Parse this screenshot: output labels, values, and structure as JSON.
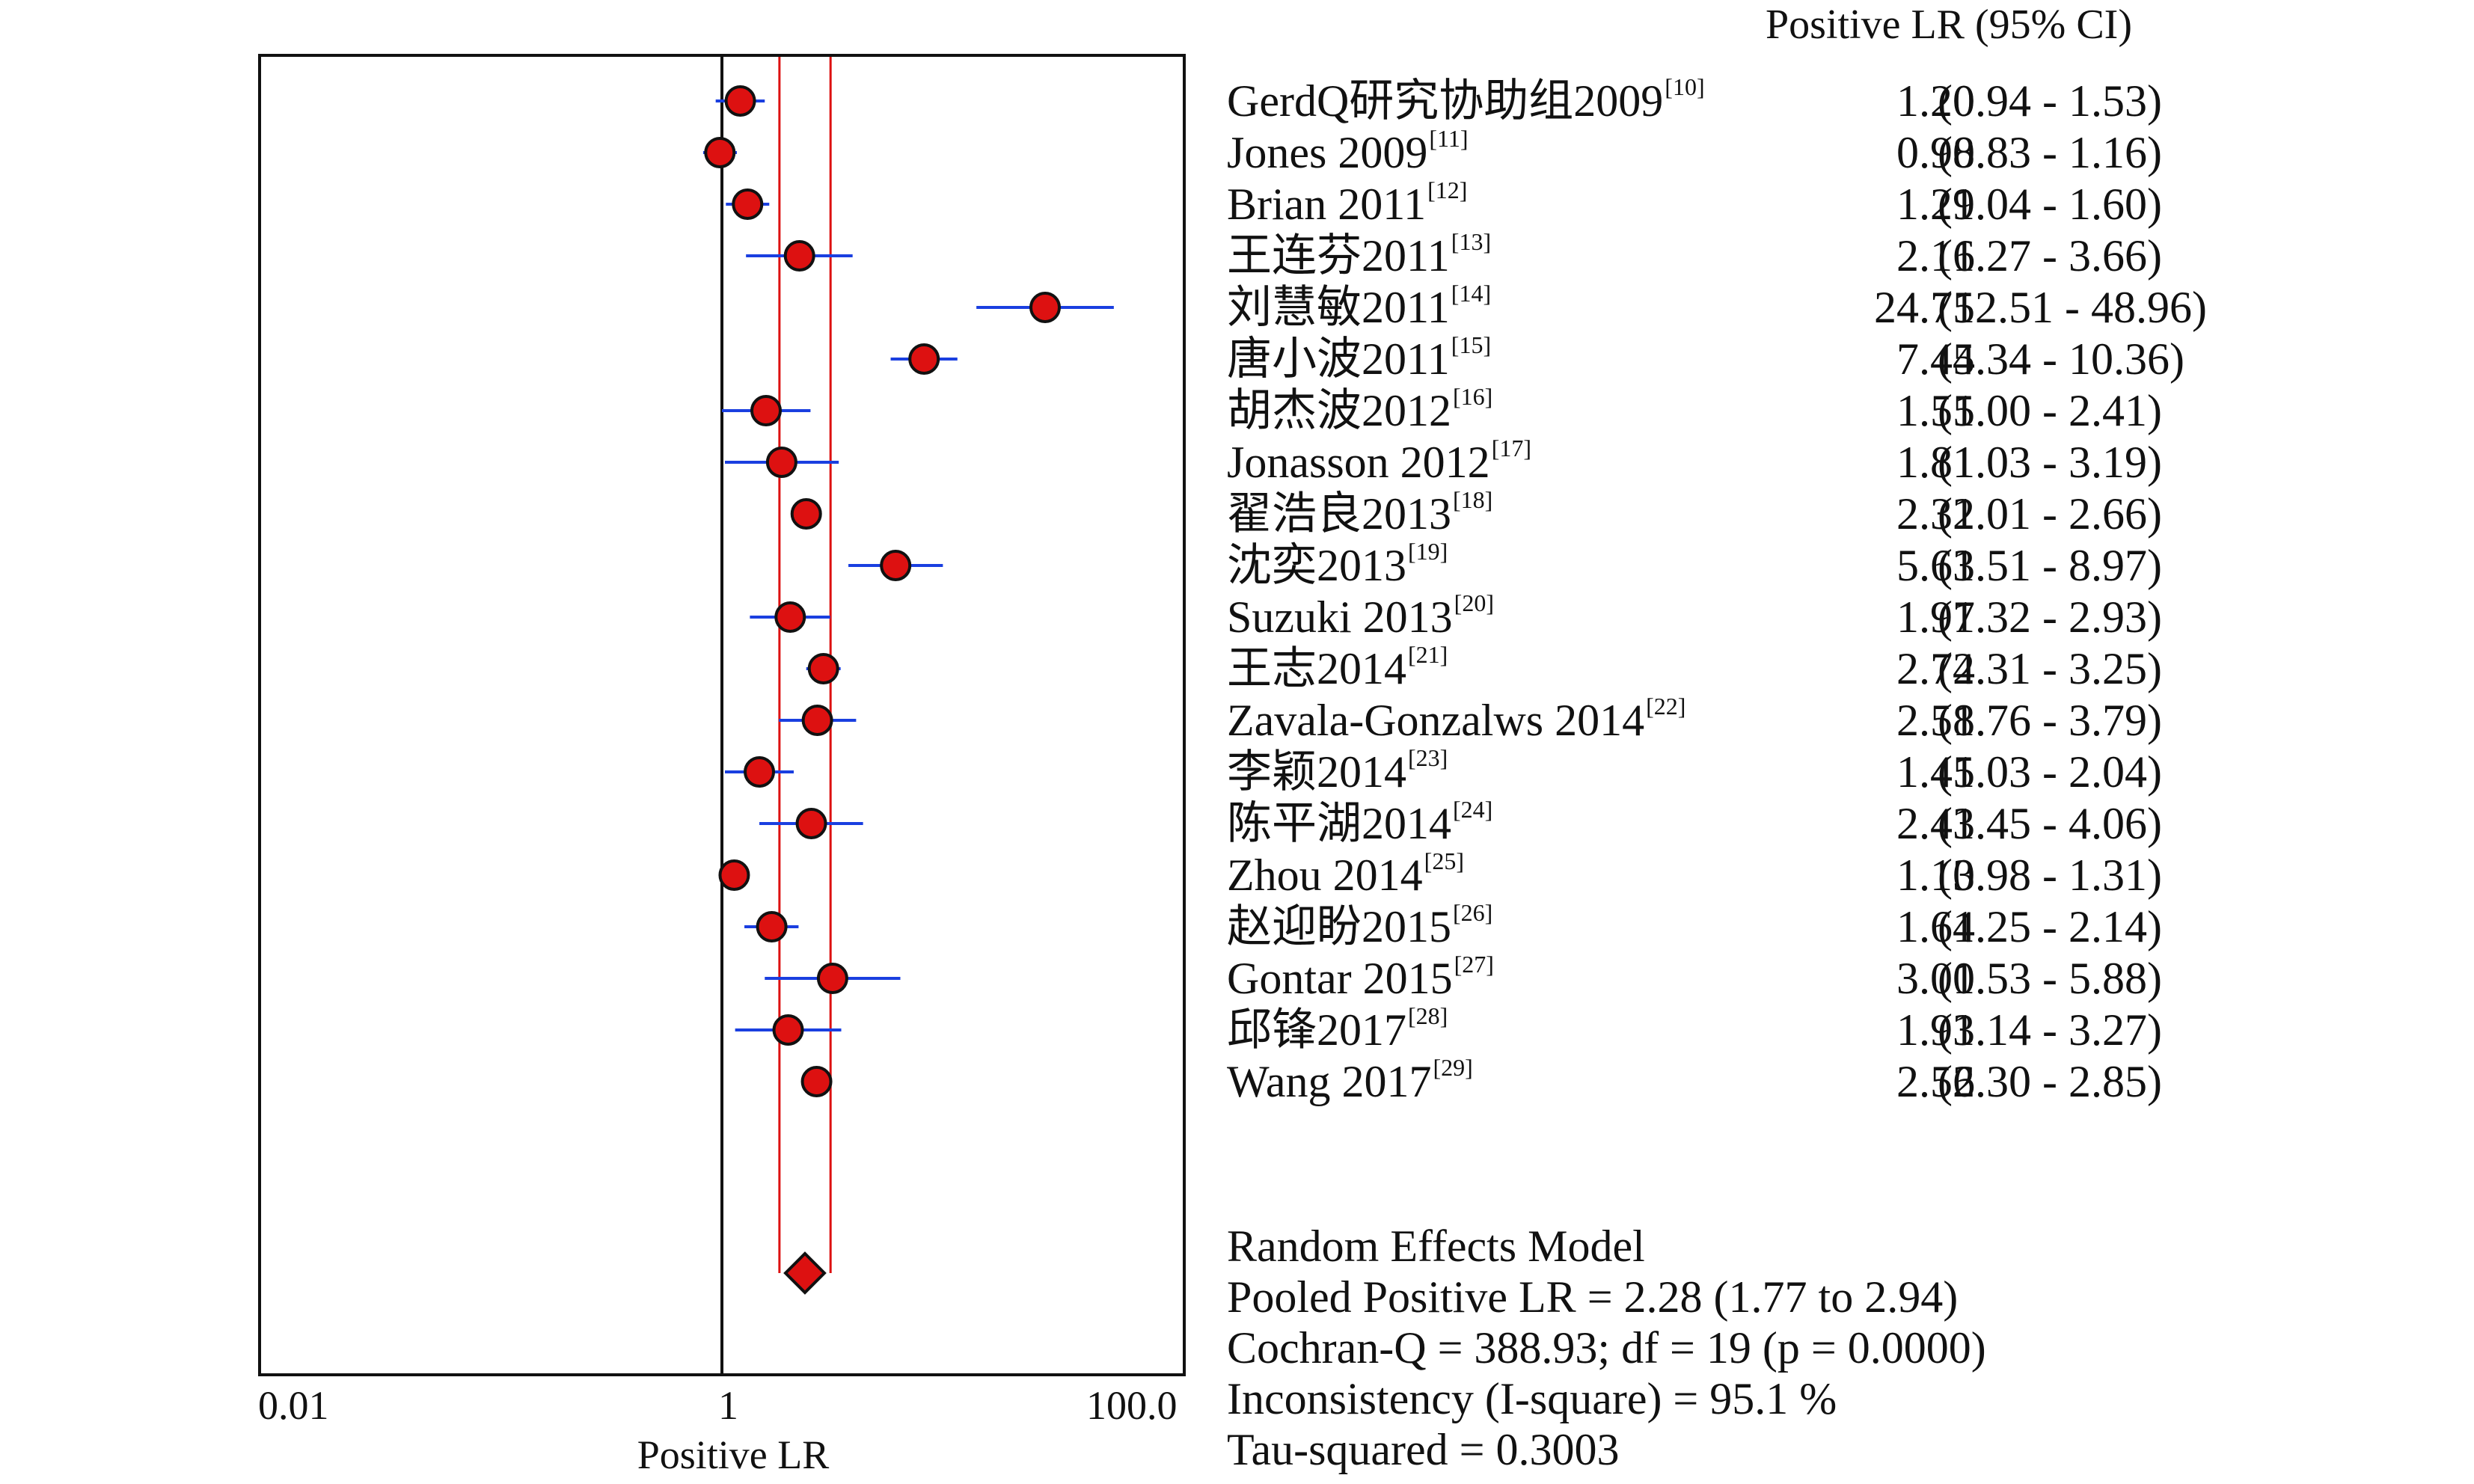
{
  "chart_data": {
    "type": "forest",
    "xlabel": "Positive LR",
    "x_scale": "log",
    "xlim": [
      0.01,
      100.0
    ],
    "x_ticks": [
      "0.01",
      "1",
      "100.0"
    ],
    "column_header": "Positive LR (95% CI)",
    "studies": [
      {
        "name": "GerdQ研究协助组2009",
        "ref": "[10]",
        "estimate": 1.2,
        "ci_low": 0.94,
        "ci_high": 1.53,
        "est_text": "1.20",
        "ci_text": "(0.94 - 1.53)"
      },
      {
        "name": "Jones 2009",
        "ref": "[11]",
        "estimate": 0.98,
        "ci_low": 0.83,
        "ci_high": 1.16,
        "est_text": "0.98",
        "ci_text": "(0.83 - 1.16)"
      },
      {
        "name": "Brian 2011",
        "ref": "[12]",
        "estimate": 1.29,
        "ci_low": 1.04,
        "ci_high": 1.6,
        "est_text": "1.29",
        "ci_text": "(1.04 - 1.60)"
      },
      {
        "name": "王连芬2011",
        "ref": "[13]",
        "estimate": 2.16,
        "ci_low": 1.27,
        "ci_high": 3.66,
        "est_text": "2.16",
        "ci_text": "(1.27 - 3.66)"
      },
      {
        "name": "刘慧敏2011",
        "ref": "[14]",
        "estimate": 24.75,
        "ci_low": 12.51,
        "ci_high": 48.96,
        "est_text": "24.75",
        "ci_text": "(12.51 - 48.96)"
      },
      {
        "name": "唐小波2011",
        "ref": "[15]",
        "estimate": 7.44,
        "ci_low": 5.34,
        "ci_high": 10.36,
        "est_text": "7.44",
        "ci_text": "(5.34 - 10.36)"
      },
      {
        "name": "胡杰波2012",
        "ref": "[16]",
        "estimate": 1.55,
        "ci_low": 1.0,
        "ci_high": 2.41,
        "est_text": "1.55",
        "ci_text": "(1.00 - 2.41)"
      },
      {
        "name": "Jonasson 2012",
        "ref": "[17]",
        "estimate": 1.81,
        "ci_low": 1.03,
        "ci_high": 3.19,
        "est_text": "1.81",
        "ci_text": "(1.03 - 3.19)"
      },
      {
        "name": "翟浩良2013",
        "ref": "[18]",
        "estimate": 2.31,
        "ci_low": 2.01,
        "ci_high": 2.66,
        "est_text": "2.31",
        "ci_text": "(2.01 - 2.66)"
      },
      {
        "name": "沈奕2013",
        "ref": "[19]",
        "estimate": 5.61,
        "ci_low": 3.51,
        "ci_high": 8.97,
        "est_text": "5.61",
        "ci_text": "(3.51 - 8.97)"
      },
      {
        "name": "Suzuki 2013",
        "ref": "[20]",
        "estimate": 1.97,
        "ci_low": 1.32,
        "ci_high": 2.93,
        "est_text": "1.97",
        "ci_text": "(1.32 - 2.93)"
      },
      {
        "name": "王志2014",
        "ref": "[21]",
        "estimate": 2.74,
        "ci_low": 2.31,
        "ci_high": 3.25,
        "est_text": "2.74",
        "ci_text": "(2.31 - 3.25)"
      },
      {
        "name": "Zavala-Gonzalws 2014",
        "ref": "[22]",
        "estimate": 2.58,
        "ci_low": 1.76,
        "ci_high": 3.79,
        "est_text": "2.58",
        "ci_text": "(1.76 - 3.79)"
      },
      {
        "name": "李颖2014",
        "ref": "[23]",
        "estimate": 1.45,
        "ci_low": 1.03,
        "ci_high": 2.04,
        "est_text": "1.45",
        "ci_text": "(1.03 - 2.04)"
      },
      {
        "name": "陈平湖2014",
        "ref": "[24]",
        "estimate": 2.43,
        "ci_low": 1.45,
        "ci_high": 4.06,
        "est_text": "2.43",
        "ci_text": "(1.45 - 4.06)"
      },
      {
        "name": "Zhou 2014",
        "ref": "[25]",
        "estimate": 1.13,
        "ci_low": 0.98,
        "ci_high": 1.31,
        "est_text": "1.13",
        "ci_text": "(0.98 - 1.31)"
      },
      {
        "name": "赵迎盼2015",
        "ref": "[26]",
        "estimate": 1.64,
        "ci_low": 1.25,
        "ci_high": 2.14,
        "est_text": "1.64",
        "ci_text": "(1.25 - 2.14)"
      },
      {
        "name": "Gontar 2015",
        "ref": "[27]",
        "estimate": 3.0,
        "ci_low": 1.53,
        "ci_high": 5.88,
        "est_text": "3.00",
        "ci_text": "(1.53 - 5.88)"
      },
      {
        "name": "邱锋2017",
        "ref": "[28]",
        "estimate": 1.93,
        "ci_low": 1.14,
        "ci_high": 3.27,
        "est_text": "1.93",
        "ci_text": "(1.14 - 3.27)"
      },
      {
        "name": "Wang 2017",
        "ref": "[29]",
        "estimate": 2.56,
        "ci_low": 2.3,
        "ci_high": 2.85,
        "est_text": "2.56",
        "ci_text": "(2.30 - 2.85)"
      }
    ],
    "pooled": {
      "estimate": 2.28,
      "ci_low": 1.77,
      "ci_high": 2.94
    },
    "reference_line": 1,
    "summary_lines": [
      "Random Effects Model",
      "Pooled Positive LR = 2.28 (1.77 to 2.94)",
      "Cochran-Q = 388.93; df =  19 (p = 0.0000)",
      "Inconsistency (I-square) = 95.1 %",
      "Tau-squared = 0.3003"
    ],
    "colors": {
      "marker_fill": "#dd1111",
      "ci_line": "#1a3fe0",
      "pooled_band": "#dd1111",
      "axis": "#111111"
    }
  }
}
